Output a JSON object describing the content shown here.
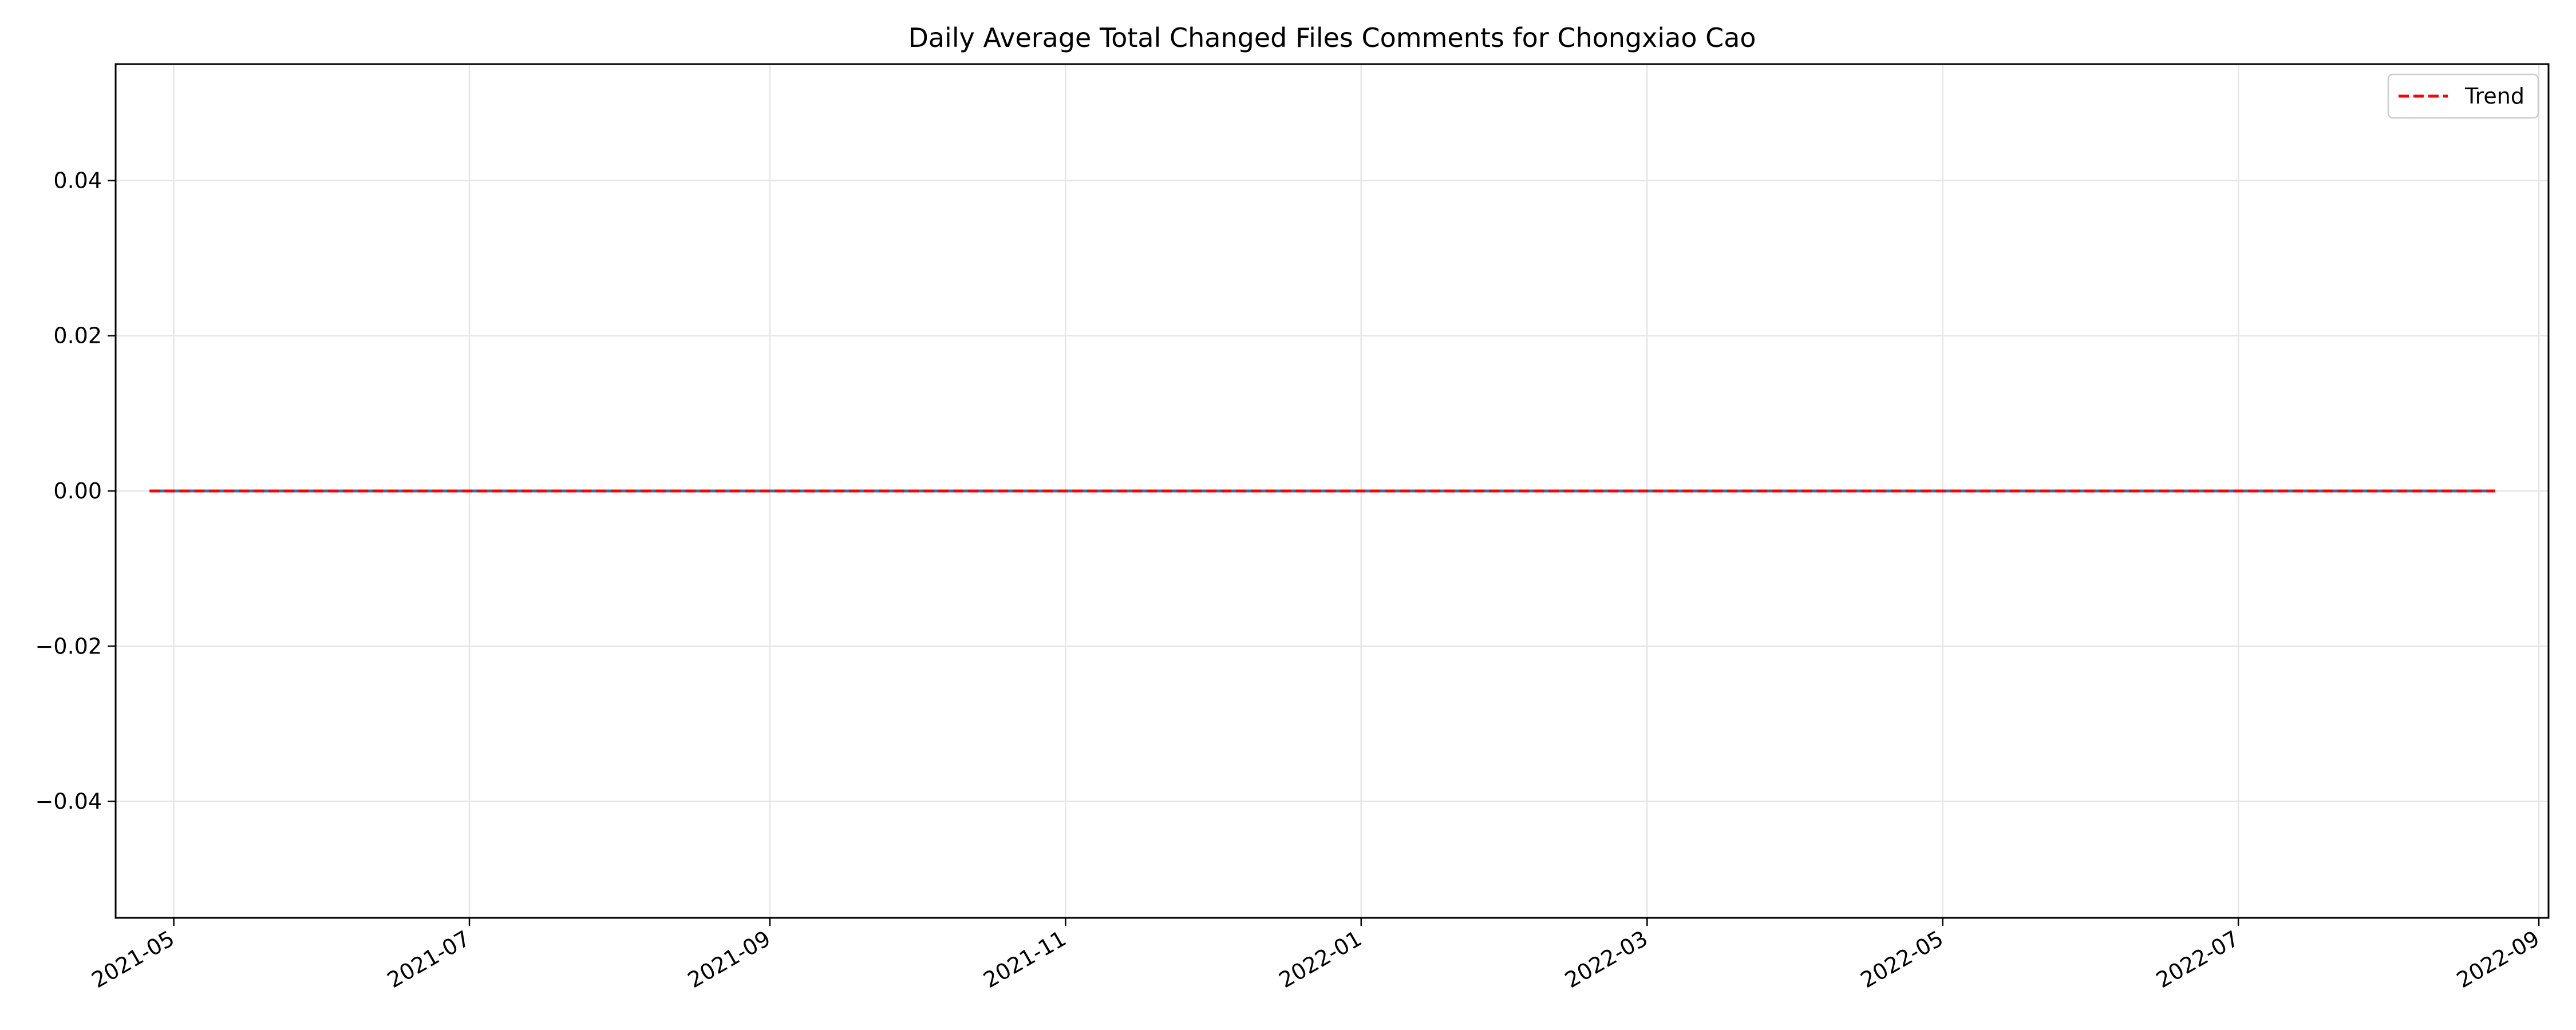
{
  "chart_data": {
    "type": "line",
    "title": "Daily Average Total Changed Files Comments for Chongxiao Cao",
    "xlabel": "",
    "ylabel": "",
    "x_type": "date",
    "xlim": [
      "2021-04-19",
      "2022-09-03"
    ],
    "ylim": [
      -0.055,
      0.055
    ],
    "x_ticks": [
      "2021-05-01",
      "2021-07-01",
      "2021-09-01",
      "2021-11-01",
      "2022-01-01",
      "2022-03-01",
      "2022-05-01",
      "2022-07-01",
      "2022-09-01"
    ],
    "x_tick_labels": [
      "2021-05",
      "2021-07",
      "2021-09",
      "2021-11",
      "2022-01",
      "2022-03",
      "2022-05",
      "2022-07",
      "2022-09"
    ],
    "y_ticks": [
      -0.04,
      -0.02,
      0.0,
      0.02,
      0.04
    ],
    "y_tick_labels": [
      "−0.04",
      "−0.02",
      "0.00",
      "0.02",
      "0.04"
    ],
    "grid": true,
    "legend_position": "top-right",
    "series": [
      {
        "style": "solid",
        "color": "#1f77b4",
        "x": [
          "2021-04-26",
          "2022-08-23"
        ],
        "y": [
          0.0,
          0.0
        ]
      },
      {
        "name": "Trend",
        "style": "dashed",
        "color": "#ff0000",
        "x": [
          "2021-04-26",
          "2022-08-23"
        ],
        "y": [
          0.0,
          0.0
        ]
      }
    ]
  }
}
